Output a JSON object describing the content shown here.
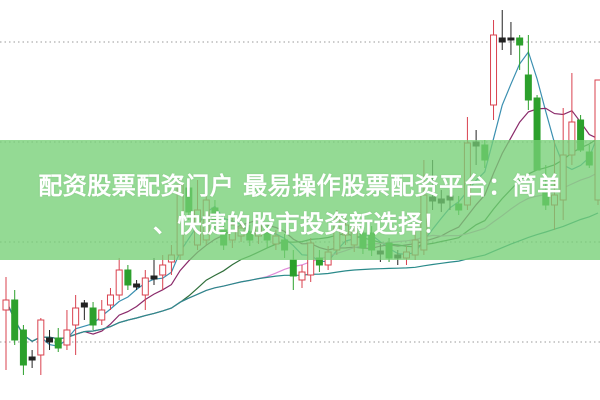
{
  "banner": {
    "line1": "配资股票配资门户 最易操作股票配资平台：简单",
    "line2": "、快捷的股市投资新选择！",
    "color": "#76d076"
  },
  "chart_data": {
    "type": "candlestick",
    "title": "",
    "xlabel": "",
    "ylabel": "",
    "ylim": [
      0,
      40
    ],
    "grid": true,
    "gridlines": [
      5.8,
      15.8,
      25.8,
      35.8
    ],
    "colors": {
      "up": "#d9414e",
      "down": "#2ca02c",
      "doji": "#222222",
      "grid": "#999999"
    },
    "ma_periods": [
      5,
      10,
      20,
      30,
      60
    ],
    "ma_colors": [
      "#3a8fb0",
      "#8a2a6a",
      "#2f6e3a",
      "#e08ad8",
      "#2a8a8a"
    ],
    "candles": [
      [
        9.0,
        12.3,
        3.0,
        10.0
      ],
      [
        10.0,
        11.0,
        5.5,
        6.0
      ],
      [
        7.0,
        7.5,
        2.5,
        3.5
      ],
      [
        4.3,
        5.0,
        3.2,
        4.0
      ],
      [
        4.5,
        8.2,
        2.5,
        8.0
      ],
      [
        5.8,
        7.0,
        5.0,
        6.2
      ],
      [
        6.2,
        7.2,
        4.8,
        5.2
      ],
      [
        5.5,
        9.0,
        5.0,
        7.0
      ],
      [
        7.5,
        10.5,
        4.5,
        9.2
      ],
      [
        9.7,
        10.0,
        8.0,
        9.3
      ],
      [
        9.2,
        9.8,
        7.0,
        7.5
      ],
      [
        8.0,
        10.0,
        7.5,
        9.0
      ],
      [
        9.5,
        11.2,
        9.0,
        10.5
      ],
      [
        10.5,
        14.2,
        10.0,
        13.0
      ],
      [
        13.0,
        13.5,
        11.0,
        11.5
      ],
      [
        11.6,
        12.0,
        11.0,
        11.3
      ],
      [
        10.5,
        13.0,
        9.0,
        12.2
      ],
      [
        12.1,
        14.2,
        11.5,
        12.4
      ],
      [
        12.5,
        14.5,
        11.0,
        13.5
      ],
      [
        13.8,
        15.5,
        12.5,
        14.5
      ],
      [
        14.5,
        22.2,
        14.0,
        21.5
      ],
      [
        21.2,
        22.0,
        18.0,
        18.8
      ],
      [
        15.5,
        22.0,
        15.0,
        19.0
      ],
      [
        16.0,
        20.5,
        15.5,
        20.0
      ],
      [
        19.2,
        20.0,
        16.8,
        17.5
      ],
      [
        17.0,
        17.8,
        15.0,
        15.5
      ],
      [
        16.0,
        18.2,
        15.2,
        17.5
      ],
      [
        16.4,
        18.0,
        15.8,
        17.2
      ],
      [
        16.8,
        17.5,
        15.4,
        16.0
      ],
      [
        16.4,
        18.0,
        15.6,
        17.4
      ],
      [
        17.0,
        17.6,
        15.2,
        16.0
      ],
      [
        15.6,
        17.0,
        15.0,
        16.4
      ],
      [
        16.0,
        16.6,
        14.2,
        15.0
      ],
      [
        14.0,
        15.0,
        11.0,
        12.4
      ],
      [
        12.0,
        13.5,
        11.2,
        12.8
      ],
      [
        12.5,
        16.2,
        11.8,
        15.7
      ],
      [
        14.2,
        15.0,
        12.8,
        13.5
      ],
      [
        13.5,
        15.4,
        13.0,
        14.8
      ],
      [
        15.0,
        19.0,
        14.5,
        18.0
      ],
      [
        16.5,
        18.2,
        15.5,
        17.5
      ],
      [
        15.5,
        17.4,
        14.8,
        16.8
      ],
      [
        16.7,
        17.2,
        14.6,
        15.2
      ],
      [
        16.7,
        17.4,
        14.4,
        15.0
      ],
      [
        14.9,
        15.6,
        13.8,
        14.6
      ],
      [
        15.7,
        16.2,
        13.8,
        14.2
      ],
      [
        14.5,
        15.0,
        13.5,
        14.2
      ],
      [
        14.2,
        15.4,
        13.5,
        14.8
      ],
      [
        14.5,
        16.8,
        14.0,
        16.0
      ],
      [
        15.0,
        24.0,
        14.5,
        20.5
      ],
      [
        20.3,
        24.0,
        19.0,
        19.9
      ],
      [
        20.1,
        21.0,
        18.8,
        19.7
      ],
      [
        20.4,
        21.0,
        19.0,
        20.0
      ],
      [
        19.6,
        20.4,
        18.5,
        19.0
      ],
      [
        19.5,
        28.3,
        19.0,
        25.7
      ],
      [
        25.8,
        27.0,
        23.5,
        25.4
      ],
      [
        25.5,
        26.0,
        23.2,
        24.0
      ],
      [
        29.5,
        38.0,
        28.0,
        36.5
      ],
      [
        36.2,
        39.0,
        35.0,
        35.8
      ],
      [
        36.0,
        37.8,
        34.5,
        36.2
      ],
      [
        36.2,
        36.5,
        33.0,
        35.5
      ],
      [
        32.5,
        36.5,
        29.0,
        30.0
      ],
      [
        30.2,
        30.5,
        23.0,
        23.0
      ],
      [
        21.0,
        23.5,
        19.0,
        19.5
      ],
      [
        19.5,
        26.0,
        17.0,
        20.5
      ],
      [
        20.0,
        29.2,
        18.0,
        24.5
      ],
      [
        24.5,
        32.7,
        23.5,
        27.8
      ],
      [
        28.0,
        28.5,
        24.8,
        25.0
      ],
      [
        24.8,
        25.5,
        23.2,
        23.5
      ],
      [
        20.0,
        32.0,
        19.5,
        32.0
      ]
    ]
  }
}
